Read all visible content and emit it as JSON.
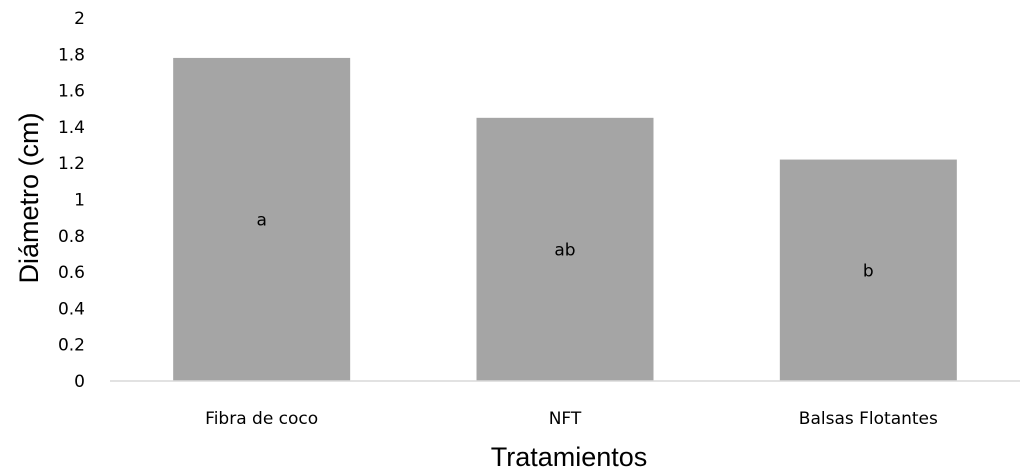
{
  "chart_data": {
    "type": "bar",
    "categories": [
      "Fibra de coco",
      "NFT",
      "Balsas Flotantes"
    ],
    "values": [
      1.78,
      1.45,
      1.22
    ],
    "bar_labels": [
      "a",
      "ab",
      "b"
    ],
    "xlabel": "Tratamientos",
    "ylabel": "Diámetro (cm)",
    "ylim": [
      0,
      2
    ],
    "yticks": [
      "0",
      "0.2",
      "0.4",
      "0.6",
      "0.8",
      "1",
      "1.2",
      "1.4",
      "1.6",
      "1.8",
      "2"
    ],
    "grid": false,
    "legend": "none",
    "colors": {
      "bar": "#a5a5a5",
      "axis": "#d9d9d9",
      "text": "#000000"
    }
  }
}
